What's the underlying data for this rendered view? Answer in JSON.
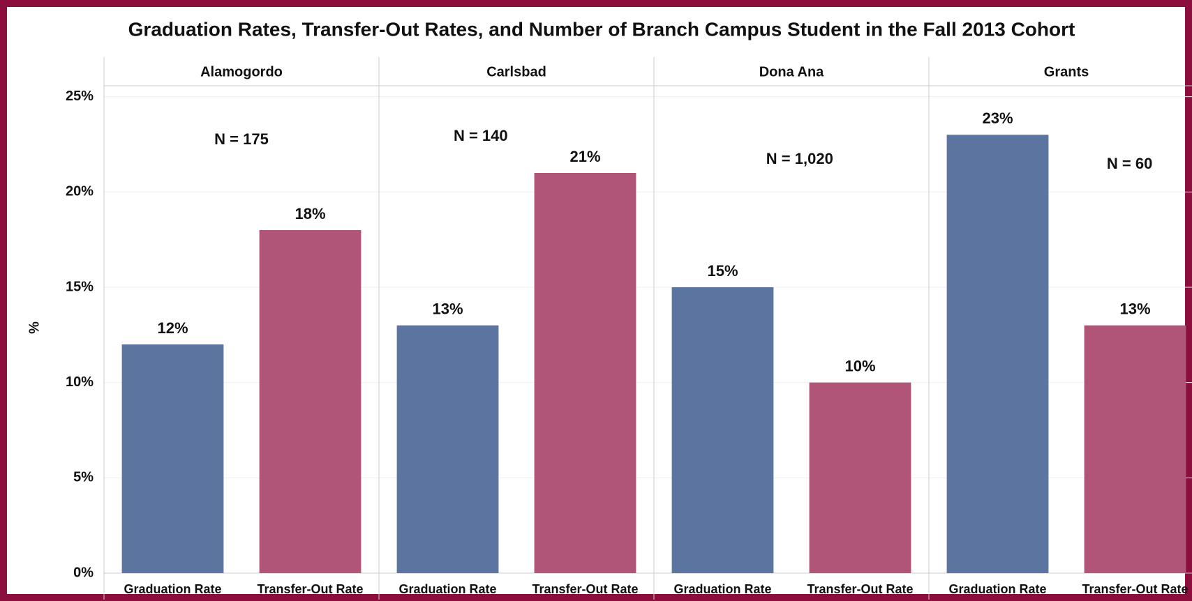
{
  "chart_data": {
    "type": "bar",
    "title": "Graduation Rates, Transfer-Out Rates, and Number of Branch Campus Student in the Fall 2013 Cohort",
    "ylabel": "%",
    "categories": [
      "Graduation Rate",
      "Transfer-Out Rate"
    ],
    "colors": [
      "#5b75a0",
      "#b05478"
    ],
    "ylim": [
      0,
      25.5
    ],
    "yticks": [
      {
        "value": 0,
        "label": "0%"
      },
      {
        "value": 5,
        "label": "5%"
      },
      {
        "value": 10,
        "label": "10%"
      },
      {
        "value": 15,
        "label": "15%"
      },
      {
        "value": 20,
        "label": "20%"
      },
      {
        "value": 25,
        "label": "25%"
      }
    ],
    "grid": true,
    "panels": [
      {
        "name": "Alamogordo",
        "values": [
          12,
          18
        ],
        "value_labels": [
          "12%",
          "18%"
        ],
        "annotation": "N = 175"
      },
      {
        "name": "Carlsbad",
        "values": [
          13,
          21
        ],
        "value_labels": [
          "13%",
          "21%"
        ],
        "annotation": "N = 140"
      },
      {
        "name": "Dona Ana",
        "values": [
          15,
          10
        ],
        "value_labels": [
          "15%",
          "10%"
        ],
        "annotation": "N = 1,020"
      },
      {
        "name": "Grants",
        "values": [
          23,
          13
        ],
        "value_labels": [
          "23%",
          "13%"
        ],
        "annotation": "N = 60"
      }
    ]
  }
}
